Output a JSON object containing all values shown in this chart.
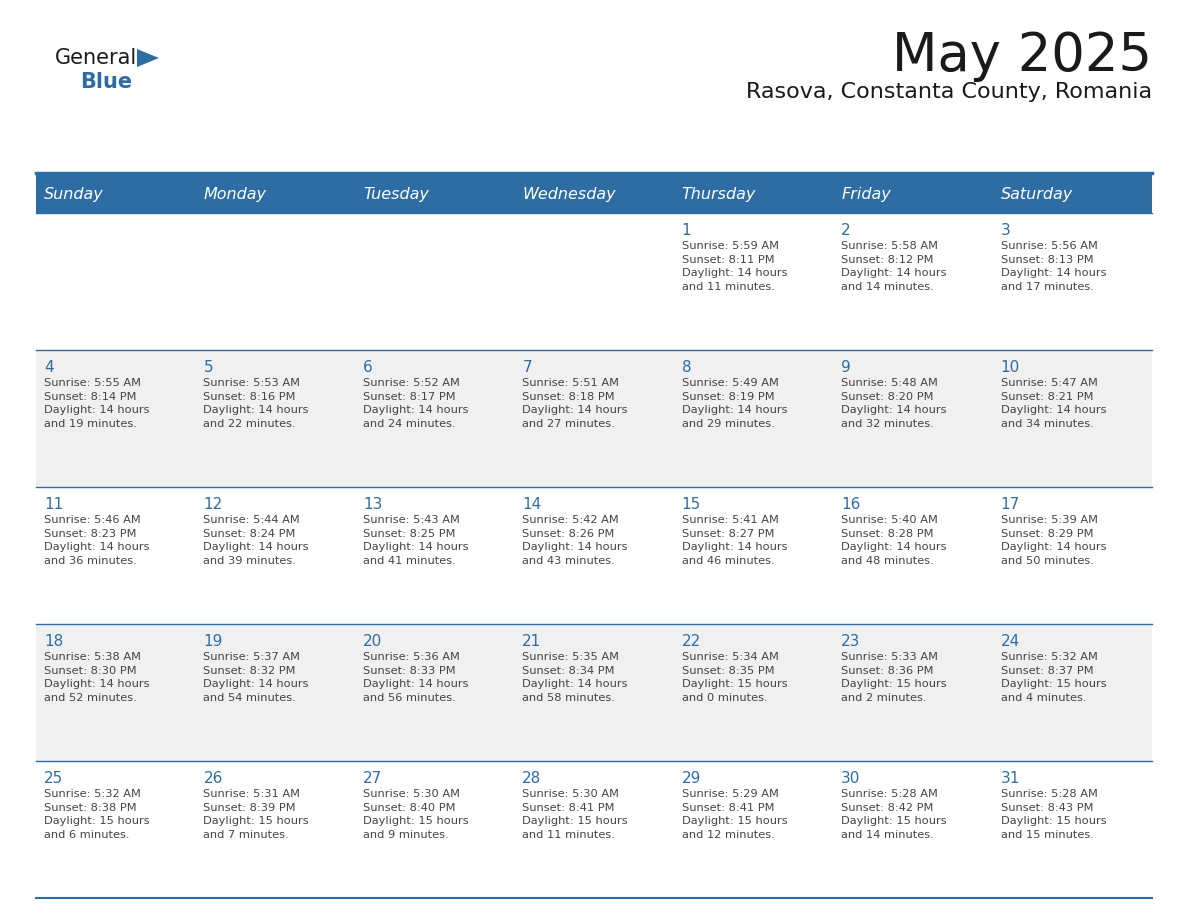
{
  "title": "May 2025",
  "subtitle": "Rasova, Constanta County, Romania",
  "header_bg": "#2E6DA4",
  "header_text": "#FFFFFF",
  "cell_bg_week1": "#FFFFFF",
  "cell_bg_week2": "#F0F0F0",
  "cell_bg_week3": "#FFFFFF",
  "cell_bg_week4": "#F0F0F0",
  "cell_bg_week5": "#FFFFFF",
  "day_headers": [
    "Sunday",
    "Monday",
    "Tuesday",
    "Wednesday",
    "Thursday",
    "Friday",
    "Saturday"
  ],
  "title_color": "#1a1a1a",
  "subtitle_color": "#1a1a1a",
  "date_color": "#2E6DA4",
  "info_color": "#444444",
  "line_color": "#2E6DA4",
  "logo_general_color": "#1a1a1a",
  "logo_blue_color": "#2E6DA4",
  "logo_triangle_color": "#2E6DA4",
  "weeks": [
    [
      {
        "day": "",
        "info": ""
      },
      {
        "day": "",
        "info": ""
      },
      {
        "day": "",
        "info": ""
      },
      {
        "day": "",
        "info": ""
      },
      {
        "day": "1",
        "info": "Sunrise: 5:59 AM\nSunset: 8:11 PM\nDaylight: 14 hours\nand 11 minutes."
      },
      {
        "day": "2",
        "info": "Sunrise: 5:58 AM\nSunset: 8:12 PM\nDaylight: 14 hours\nand 14 minutes."
      },
      {
        "day": "3",
        "info": "Sunrise: 5:56 AM\nSunset: 8:13 PM\nDaylight: 14 hours\nand 17 minutes."
      }
    ],
    [
      {
        "day": "4",
        "info": "Sunrise: 5:55 AM\nSunset: 8:14 PM\nDaylight: 14 hours\nand 19 minutes."
      },
      {
        "day": "5",
        "info": "Sunrise: 5:53 AM\nSunset: 8:16 PM\nDaylight: 14 hours\nand 22 minutes."
      },
      {
        "day": "6",
        "info": "Sunrise: 5:52 AM\nSunset: 8:17 PM\nDaylight: 14 hours\nand 24 minutes."
      },
      {
        "day": "7",
        "info": "Sunrise: 5:51 AM\nSunset: 8:18 PM\nDaylight: 14 hours\nand 27 minutes."
      },
      {
        "day": "8",
        "info": "Sunrise: 5:49 AM\nSunset: 8:19 PM\nDaylight: 14 hours\nand 29 minutes."
      },
      {
        "day": "9",
        "info": "Sunrise: 5:48 AM\nSunset: 8:20 PM\nDaylight: 14 hours\nand 32 minutes."
      },
      {
        "day": "10",
        "info": "Sunrise: 5:47 AM\nSunset: 8:21 PM\nDaylight: 14 hours\nand 34 minutes."
      }
    ],
    [
      {
        "day": "11",
        "info": "Sunrise: 5:46 AM\nSunset: 8:23 PM\nDaylight: 14 hours\nand 36 minutes."
      },
      {
        "day": "12",
        "info": "Sunrise: 5:44 AM\nSunset: 8:24 PM\nDaylight: 14 hours\nand 39 minutes."
      },
      {
        "day": "13",
        "info": "Sunrise: 5:43 AM\nSunset: 8:25 PM\nDaylight: 14 hours\nand 41 minutes."
      },
      {
        "day": "14",
        "info": "Sunrise: 5:42 AM\nSunset: 8:26 PM\nDaylight: 14 hours\nand 43 minutes."
      },
      {
        "day": "15",
        "info": "Sunrise: 5:41 AM\nSunset: 8:27 PM\nDaylight: 14 hours\nand 46 minutes."
      },
      {
        "day": "16",
        "info": "Sunrise: 5:40 AM\nSunset: 8:28 PM\nDaylight: 14 hours\nand 48 minutes."
      },
      {
        "day": "17",
        "info": "Sunrise: 5:39 AM\nSunset: 8:29 PM\nDaylight: 14 hours\nand 50 minutes."
      }
    ],
    [
      {
        "day": "18",
        "info": "Sunrise: 5:38 AM\nSunset: 8:30 PM\nDaylight: 14 hours\nand 52 minutes."
      },
      {
        "day": "19",
        "info": "Sunrise: 5:37 AM\nSunset: 8:32 PM\nDaylight: 14 hours\nand 54 minutes."
      },
      {
        "day": "20",
        "info": "Sunrise: 5:36 AM\nSunset: 8:33 PM\nDaylight: 14 hours\nand 56 minutes."
      },
      {
        "day": "21",
        "info": "Sunrise: 5:35 AM\nSunset: 8:34 PM\nDaylight: 14 hours\nand 58 minutes."
      },
      {
        "day": "22",
        "info": "Sunrise: 5:34 AM\nSunset: 8:35 PM\nDaylight: 15 hours\nand 0 minutes."
      },
      {
        "day": "23",
        "info": "Sunrise: 5:33 AM\nSunset: 8:36 PM\nDaylight: 15 hours\nand 2 minutes."
      },
      {
        "day": "24",
        "info": "Sunrise: 5:32 AM\nSunset: 8:37 PM\nDaylight: 15 hours\nand 4 minutes."
      }
    ],
    [
      {
        "day": "25",
        "info": "Sunrise: 5:32 AM\nSunset: 8:38 PM\nDaylight: 15 hours\nand 6 minutes."
      },
      {
        "day": "26",
        "info": "Sunrise: 5:31 AM\nSunset: 8:39 PM\nDaylight: 15 hours\nand 7 minutes."
      },
      {
        "day": "27",
        "info": "Sunrise: 5:30 AM\nSunset: 8:40 PM\nDaylight: 15 hours\nand 9 minutes."
      },
      {
        "day": "28",
        "info": "Sunrise: 5:30 AM\nSunset: 8:41 PM\nDaylight: 15 hours\nand 11 minutes."
      },
      {
        "day": "29",
        "info": "Sunrise: 5:29 AM\nSunset: 8:41 PM\nDaylight: 15 hours\nand 12 minutes."
      },
      {
        "day": "30",
        "info": "Sunrise: 5:28 AM\nSunset: 8:42 PM\nDaylight: 15 hours\nand 14 minutes."
      },
      {
        "day": "31",
        "info": "Sunrise: 5:28 AM\nSunset: 8:43 PM\nDaylight: 15 hours\nand 15 minutes."
      }
    ]
  ]
}
